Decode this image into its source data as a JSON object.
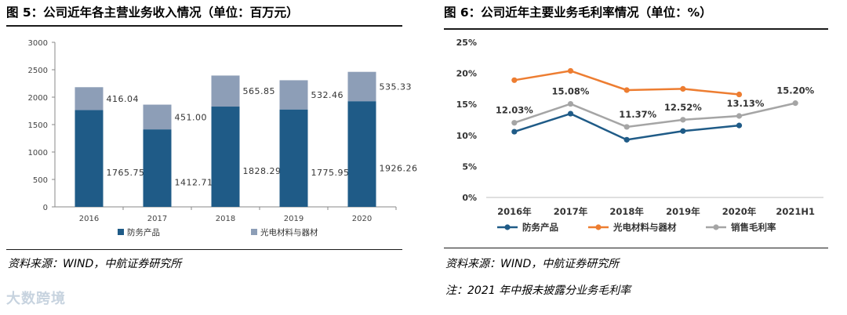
{
  "left": {
    "title": "图 5：公司近年各主营业务收入情况（单位：百万元）",
    "source": "资料来源：WIND，中航证券研究所",
    "chart_data": {
      "type": "bar",
      "stacked": true,
      "categories": [
        "2016",
        "2017",
        "2018",
        "2019",
        "2020"
      ],
      "series": [
        {
          "name": "防务产品",
          "color": "#1f5b87",
          "values": [
            1765.75,
            1412.71,
            1828.29,
            1775.95,
            1926.26
          ],
          "labels": [
            "1765.75",
            "1412.71",
            "1828.29",
            "1775.95",
            "1926.26"
          ]
        },
        {
          "name": "光电材料与器材",
          "color": "#8d9eb7",
          "values": [
            416.04,
            451.0,
            565.85,
            532.46,
            535.33
          ],
          "labels": [
            "416.04",
            "451.00",
            "565.85",
            "532.46",
            "535.33"
          ]
        }
      ],
      "ylim": [
        0,
        3000
      ],
      "yticks": [
        "0",
        "500",
        "1000",
        "1500",
        "2000",
        "2500",
        "3000"
      ],
      "legend": "bottom-left"
    }
  },
  "right": {
    "title": "图 6：公司近年主要业务毛利率情况（单位：%）",
    "source": "资料来源：WIND，中航证券研究所",
    "note": "注：2021 年中报未披露分业务毛利率",
    "chart_data": {
      "type": "line",
      "categories": [
        "2016年",
        "2017年",
        "2018年",
        "2019年",
        "2020年",
        "2021H1"
      ],
      "series": [
        {
          "name": "防务产品",
          "color": "#1f5b87",
          "values": [
            10.6,
            13.5,
            9.3,
            10.7,
            11.6,
            null
          ]
        },
        {
          "name": "光电材料与器材",
          "color": "#ed7d31",
          "values": [
            18.9,
            20.4,
            17.3,
            17.5,
            16.6,
            null
          ]
        },
        {
          "name": "销售毛利率",
          "color": "#a5a5a5",
          "values": [
            12.03,
            15.08,
            11.37,
            12.52,
            13.13,
            15.2
          ],
          "labels": [
            "12.03%",
            "15.08%",
            "11.37%",
            "12.52%",
            "13.13%",
            "15.20%"
          ]
        }
      ],
      "ylim": [
        0,
        25
      ],
      "yticks": [
        "0%",
        "5%",
        "10%",
        "15%",
        "20%",
        "25%"
      ],
      "legend": "bottom"
    }
  },
  "watermark": "大数跨境"
}
